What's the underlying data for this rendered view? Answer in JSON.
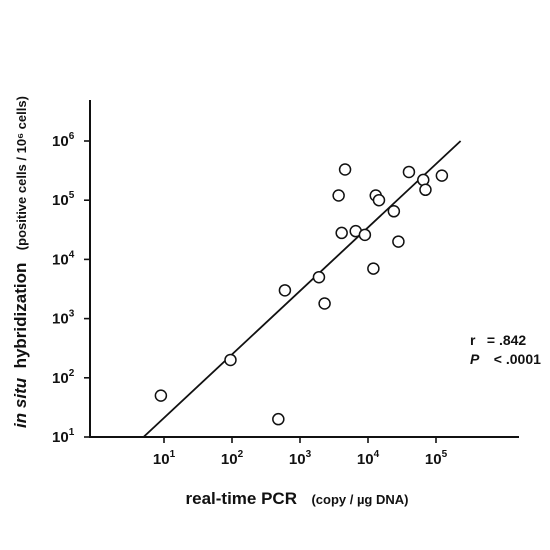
{
  "chart_data": {
    "type": "scatter",
    "x_scale": "log",
    "y_scale": "log",
    "xlim": [
      1,
      300000
    ],
    "ylim": [
      10,
      2000000
    ],
    "x_ticks": [
      {
        "base": "10",
        "exp": "1",
        "value": 10
      },
      {
        "base": "10",
        "exp": "2",
        "value": 100
      },
      {
        "base": "10",
        "exp": "3",
        "value": 1000
      },
      {
        "base": "10",
        "exp": "4",
        "value": 10000
      },
      {
        "base": "10",
        "exp": "5",
        "value": 100000
      }
    ],
    "y_ticks": [
      {
        "base": "10",
        "exp": "1",
        "value": 10
      },
      {
        "base": "10",
        "exp": "2",
        "value": 100
      },
      {
        "base": "10",
        "exp": "3",
        "value": 1000
      },
      {
        "base": "10",
        "exp": "4",
        "value": 10000
      },
      {
        "base": "10",
        "exp": "5",
        "value": 100000
      },
      {
        "base": "10",
        "exp": "6",
        "value": 1000000
      }
    ],
    "xlabel": {
      "main": "real-time PCR",
      "unit": "(copy / µg DNA)"
    },
    "ylabel": {
      "italic": "in situ",
      "main": "hybridization",
      "unit": "(positive cells / 10⁶ cells)"
    },
    "points": [
      {
        "x": 9,
        "y": 50
      },
      {
        "x": 95,
        "y": 200
      },
      {
        "x": 480,
        "y": 20
      },
      {
        "x": 600,
        "y": 3000
      },
      {
        "x": 1900,
        "y": 5000
      },
      {
        "x": 2300,
        "y": 1800
      },
      {
        "x": 3700,
        "y": 120000
      },
      {
        "x": 4100,
        "y": 28000
      },
      {
        "x": 4600,
        "y": 330000
      },
      {
        "x": 6600,
        "y": 30000
      },
      {
        "x": 9000,
        "y": 26000
      },
      {
        "x": 12000,
        "y": 7000
      },
      {
        "x": 13000,
        "y": 120000
      },
      {
        "x": 14500,
        "y": 100000
      },
      {
        "x": 24000,
        "y": 65000
      },
      {
        "x": 28000,
        "y": 20000
      },
      {
        "x": 40000,
        "y": 300000
      },
      {
        "x": 65000,
        "y": 220000
      },
      {
        "x": 70000,
        "y": 150000
      },
      {
        "x": 122000,
        "y": 260000
      }
    ],
    "regression_line": {
      "x": [
        5,
        230000
      ],
      "y": [
        10,
        1000000
      ]
    },
    "annotations": {
      "r_label": "r",
      "r_value": "= .842",
      "p_label": "P",
      "p_value": "< .0001"
    },
    "grid": false,
    "legend": "none"
  }
}
